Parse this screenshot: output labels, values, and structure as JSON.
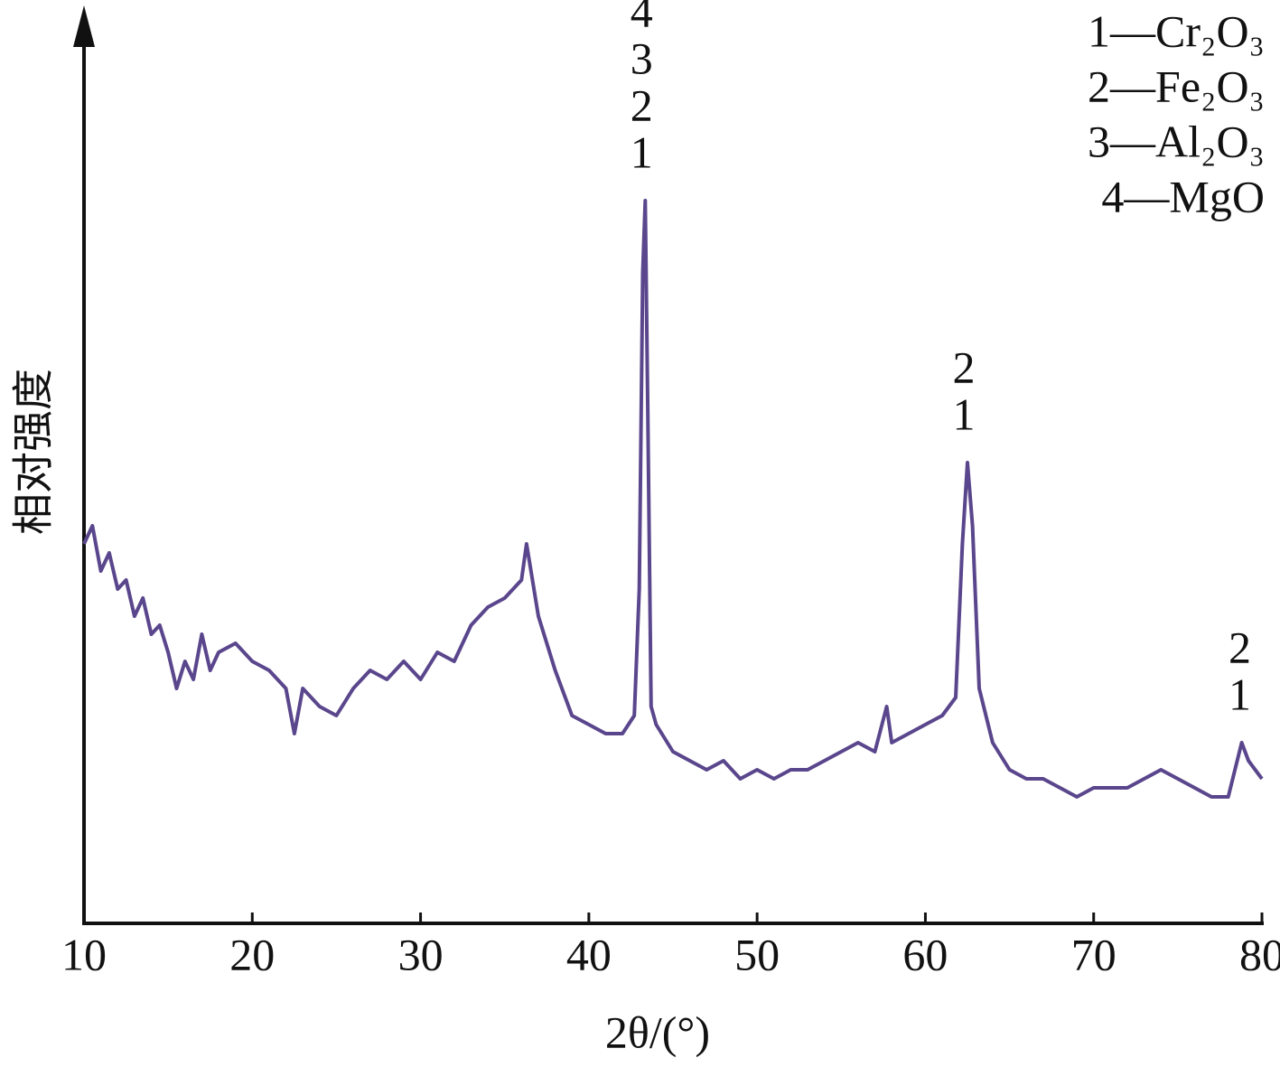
{
  "chart_data": {
    "type": "line",
    "x_label": "2θ/(°)",
    "y_label": "相对强度",
    "x": [
      10,
      10.5,
      11,
      11.5,
      12,
      12.5,
      13,
      13.5,
      14,
      14.5,
      15,
      15.5,
      16,
      16.5,
      17,
      17.5,
      18,
      19,
      20,
      21,
      22,
      22.5,
      23,
      24,
      25,
      26,
      27,
      28,
      29,
      30,
      31,
      32,
      33,
      34,
      35,
      36,
      36.3,
      37,
      38,
      39,
      40,
      41,
      42,
      42.7,
      43,
      43.2,
      43.35,
      43.5,
      43.7,
      44,
      45,
      46,
      47,
      48,
      49,
      50,
      51,
      52,
      53,
      54,
      55,
      56,
      57,
      57.7,
      58,
      59,
      60,
      61,
      61.8,
      62.2,
      62.5,
      62.8,
      63.2,
      64,
      65,
      66,
      67,
      68,
      69,
      70,
      71,
      72,
      73,
      74,
      75,
      76,
      77,
      78,
      78.8,
      79.2,
      80
    ],
    "series": [
      {
        "color": "#5a468c",
        "values": [
          42,
          44,
          39,
          41,
          37,
          38,
          34,
          36,
          32,
          33,
          30,
          26,
          29,
          27,
          32,
          28,
          30,
          31,
          29,
          28,
          26,
          21,
          26,
          24,
          23,
          26,
          28,
          27,
          29,
          27,
          30,
          29,
          33,
          35,
          36,
          38,
          42,
          34,
          28,
          23,
          22,
          21,
          21,
          23,
          37,
          72,
          80,
          57,
          24,
          22,
          19,
          18,
          17,
          18,
          16,
          17,
          16,
          17,
          17,
          18,
          19,
          20,
          19,
          24,
          20,
          21,
          22,
          23,
          25,
          42,
          51,
          44,
          26,
          20,
          17,
          16,
          16,
          15,
          14,
          15,
          15,
          15,
          16,
          17,
          16,
          15,
          14,
          14,
          20,
          18,
          16
        ]
      }
    ],
    "xlim": [
      10,
      80
    ],
    "xticks": [
      10,
      20,
      30,
      40,
      50,
      60,
      70,
      80
    ],
    "ylim": [
      0,
      100
    ],
    "peak_labels": [
      {
        "x": 43.35,
        "text": [
          "4",
          "3",
          "2",
          "1"
        ]
      },
      {
        "x": 62.5,
        "text": [
          "2",
          "1"
        ]
      },
      {
        "x": 78.9,
        "text": [
          "2",
          "1"
        ]
      }
    ],
    "legend": [
      "1—Cr₂O₃",
      "2—Fe₂O₃",
      "3—Al₂O₃",
      "4—MgO"
    ]
  }
}
